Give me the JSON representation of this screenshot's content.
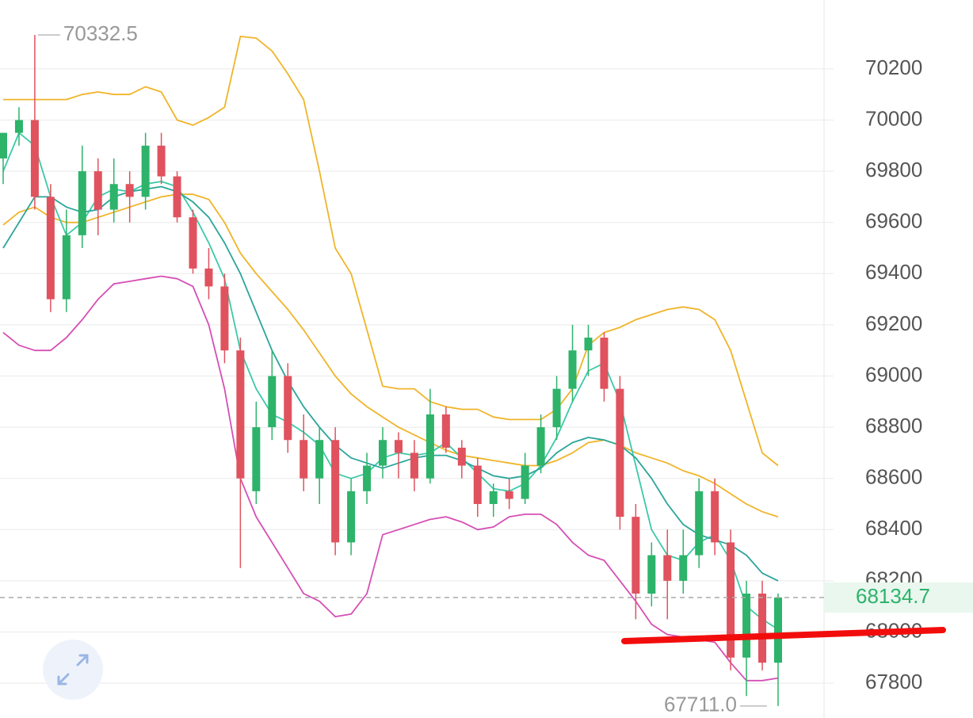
{
  "chart_data": {
    "type": "candlestick",
    "up_color": "#2db36a",
    "down_color": "#e0525e",
    "ylim": [
      67664,
      70469
    ],
    "yticks": [
      67800,
      68000,
      68200,
      68400,
      68600,
      68800,
      69000,
      69200,
      69400,
      69600,
      69800,
      70000,
      70200
    ],
    "grid": true,
    "open": [
      69850,
      69950,
      70000,
      69700,
      69300,
      69550,
      69800,
      69650,
      69750,
      69700,
      69900,
      69780,
      69620,
      69420,
      69350,
      69100,
      68550,
      68800,
      69000,
      68750,
      68600,
      68750,
      68350,
      68550,
      68650,
      68750,
      68700,
      68600,
      68850,
      68720,
      68650,
      68500,
      68550,
      68520,
      68650,
      68800,
      68950,
      69100,
      69150,
      68950,
      68450,
      68150,
      68300,
      68200,
      68300,
      68550,
      68350,
      67900,
      68150,
      67880
    ],
    "high": [
      69950,
      70050,
      70332.5,
      69750,
      69650,
      69900,
      69850,
      69850,
      69800,
      69950,
      69950,
      69800,
      69650,
      69500,
      69400,
      69150,
      68900,
      69100,
      69050,
      68850,
      68800,
      68800,
      68600,
      68700,
      68800,
      68780,
      68750,
      68950,
      68880,
      68750,
      68680,
      68580,
      68600,
      68700,
      68850,
      69000,
      69200,
      69200,
      69170,
      69000,
      68500,
      68350,
      68400,
      68400,
      68600,
      68600,
      68400,
      68200,
      68200,
      68150
    ],
    "low": [
      69750,
      69900,
      69650,
      69250,
      69250,
      69500,
      69550,
      69600,
      69600,
      69650,
      69750,
      69600,
      69400,
      69300,
      69050,
      68250,
      68500,
      68750,
      68700,
      68550,
      68500,
      68300,
      68300,
      68500,
      68600,
      68600,
      68550,
      68580,
      68700,
      68600,
      68450,
      68450,
      68480,
      68500,
      68620,
      68750,
      68900,
      69000,
      68900,
      68400,
      68050,
      68100,
      68050,
      68150,
      68250,
      68300,
      67850,
      67750,
      67850,
      67711
    ],
    "close": [
      69950,
      70000,
      69700,
      69300,
      69550,
      69800,
      69650,
      69750,
      69700,
      69900,
      69780,
      69620,
      69420,
      69350,
      69100,
      68600,
      68800,
      69000,
      68750,
      68600,
      68750,
      68350,
      68550,
      68650,
      68750,
      68700,
      68600,
      68850,
      68720,
      68650,
      68500,
      68550,
      68520,
      68650,
      68800,
      68950,
      69100,
      69150,
      68950,
      68450,
      68150,
      68300,
      68200,
      68300,
      68550,
      68350,
      67900,
      68150,
      67880,
      68134.7
    ],
    "min_label": "67711.0",
    "lines": [
      {
        "color": "#f0b429",
        "values": [
          70080,
          70080,
          70080,
          70080,
          70080,
          70100,
          70110,
          70100,
          70100,
          70130,
          70110,
          70000,
          69980,
          70010,
          70050,
          70327,
          70320,
          70270,
          70180,
          70080,
          69800,
          69500,
          69400,
          69180,
          68960,
          68950,
          68950,
          68900,
          68880,
          68870,
          68870,
          68840,
          68830,
          68830,
          68830,
          68870,
          68950,
          69120,
          69170,
          69190,
          69220,
          69240,
          69260,
          69270,
          69260,
          69220,
          69100,
          68900,
          68700,
          68650
        ]
      },
      {
        "color": "#f0b429",
        "values": [
          69590,
          69640,
          69660,
          69620,
          69600,
          69600,
          69620,
          69640,
          69660,
          69680,
          69700,
          69710,
          69710,
          69690,
          69600,
          69480,
          69400,
          69330,
          69260,
          69180,
          69090,
          69000,
          68930,
          68880,
          68840,
          68800,
          68770,
          68740,
          68710,
          68690,
          68680,
          68670,
          68660,
          68650,
          68650,
          68670,
          68700,
          68740,
          68750,
          68730,
          68700,
          68680,
          68660,
          68630,
          68610,
          68580,
          68540,
          68500,
          68470,
          68450
        ]
      },
      {
        "color": "#d64fb5",
        "values": [
          69170,
          69120,
          69100,
          69100,
          69150,
          69220,
          69300,
          69360,
          69370,
          69380,
          69390,
          69380,
          69350,
          69200,
          68950,
          68600,
          68450,
          68350,
          68250,
          68150,
          68120,
          68060,
          68070,
          68150,
          68380,
          68400,
          68420,
          68440,
          68450,
          68430,
          68400,
          68410,
          68450,
          68460,
          68460,
          68420,
          68350,
          68300,
          68280,
          68200,
          68120,
          68030,
          67990,
          67980,
          67970,
          67960,
          67880,
          67810,
          67810,
          67820
        ]
      },
      {
        "color": "#3cc9a8",
        "values": [
          69800,
          69950,
          69900,
          69700,
          69550,
          69600,
          69700,
          69730,
          69720,
          69750,
          69760,
          69740,
          69640,
          69520,
          69380,
          69100,
          68950,
          68850,
          68820,
          68780,
          68730,
          68620,
          68600,
          68620,
          68680,
          68700,
          68690,
          68700,
          68740,
          68680,
          68620,
          68560,
          68550,
          68580,
          68650,
          68760,
          68900,
          69020,
          69050,
          68900,
          68650,
          68400,
          68300,
          68280,
          68350,
          68380,
          68280,
          68100,
          68050,
          68010
        ]
      },
      {
        "color": "#2aa59a",
        "values": [
          69500,
          69600,
          69700,
          69700,
          69660,
          69640,
          69650,
          69700,
          69720,
          69730,
          69740,
          69720,
          69680,
          69620,
          69520,
          69400,
          69250,
          69100,
          68980,
          68880,
          68800,
          68730,
          68680,
          68660,
          68640,
          68660,
          68680,
          68690,
          68690,
          68670,
          68640,
          68610,
          68600,
          68610,
          68640,
          68700,
          68740,
          68760,
          68750,
          68730,
          68680,
          68600,
          68500,
          68420,
          68380,
          68360,
          68340,
          68300,
          68230,
          68200
        ]
      }
    ]
  }
}
